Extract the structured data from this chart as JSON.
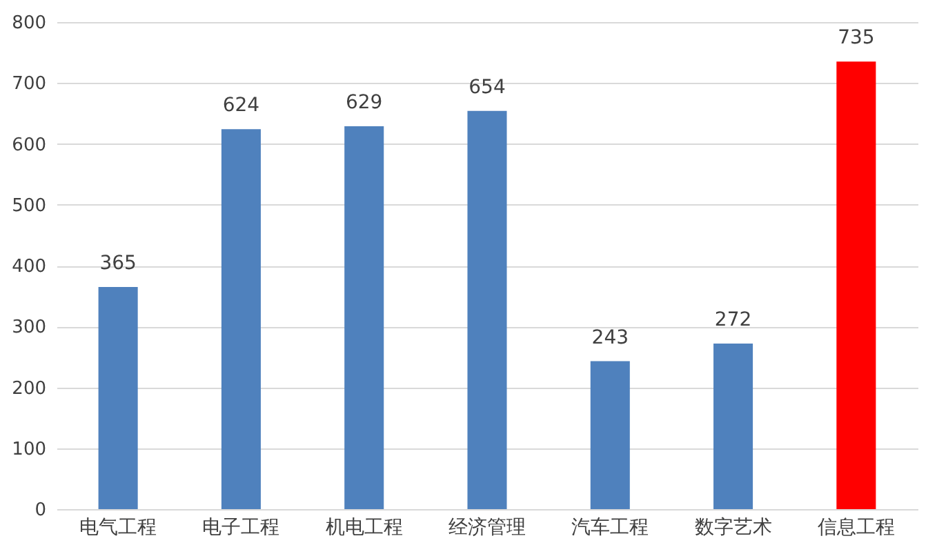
{
  "chart_data": {
    "type": "bar",
    "categories": [
      "电气工程",
      "电子工程",
      "机电工程",
      "经济管理",
      "汽车工程",
      "数字艺术",
      "信息工程"
    ],
    "values": [
      365,
      624,
      629,
      654,
      243,
      272,
      735
    ],
    "colors": [
      "#4f81bd",
      "#4f81bd",
      "#4f81bd",
      "#4f81bd",
      "#4f81bd",
      "#4f81bd",
      "#ff0000"
    ],
    "ylim": [
      0,
      800
    ],
    "yticks": [
      0,
      100,
      200,
      300,
      400,
      500,
      600,
      700,
      800
    ],
    "grid": "y",
    "data_labels": true,
    "legend": false
  }
}
